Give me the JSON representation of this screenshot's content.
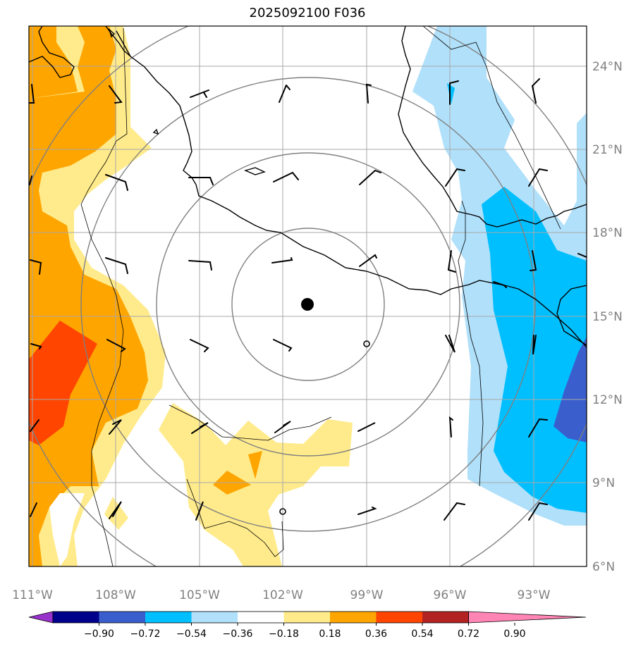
{
  "title": "2025092100 F036",
  "map": {
    "lon_labels": [
      "111°W",
      "108°W",
      "105°W",
      "102°W",
      "99°W",
      "96°W",
      "93°W"
    ],
    "lat_labels": [
      "24°N",
      "21°N",
      "18°N",
      "15°N",
      "12°N",
      "9°N",
      "6°N"
    ],
    "center_marker": "storm-center-dot"
  },
  "colorbar": {
    "ticks": [
      "−0.90",
      "−0.72",
      "−0.54",
      "−0.36",
      "−0.18",
      "0.18",
      "0.36",
      "0.54",
      "0.72",
      "0.90"
    ],
    "colors": [
      "#9932cc",
      "#00008b",
      "#3a5fcd",
      "#00bfff",
      "#b0e0fa",
      "#ffffff",
      "#ffeb8b",
      "#ffa500",
      "#ff4500",
      "#b22222",
      "#ff85b4"
    ]
  }
}
